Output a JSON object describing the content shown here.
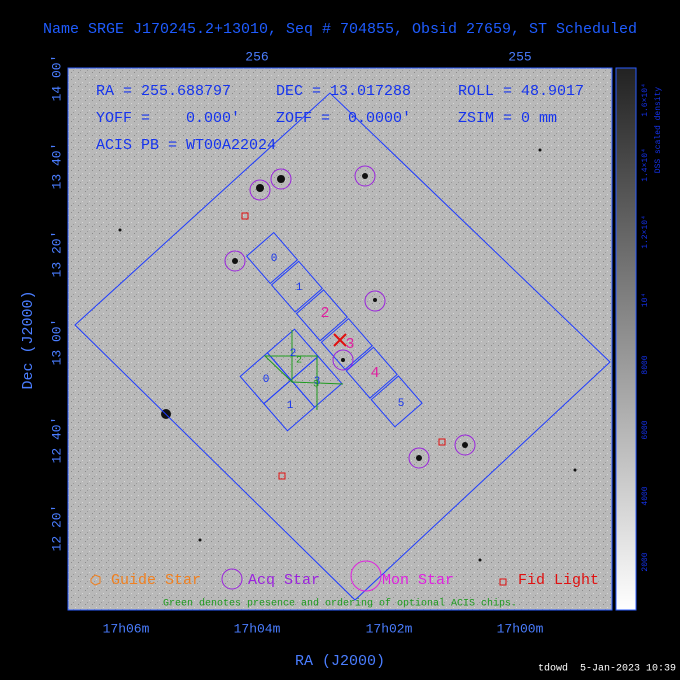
{
  "header": {
    "title": "Name SRGE J170245.2+13010, Seq # 704855, Obsid 27659, ST Scheduled"
  },
  "axes": {
    "top_ticks": [
      "256",
      "255"
    ],
    "left_ticks": [
      "14 00'",
      "13 40'",
      "13 20'",
      "13 00'",
      "12 40'",
      "12 20'"
    ],
    "bottom_ticks": [
      "17h06m",
      "17h04m",
      "17h02m",
      "17h00m"
    ],
    "x_title": "RA (J2000)",
    "y_title": "Dec (J2000)"
  },
  "info": [
    "RA = 255.688797",
    "DEC = 13.017288",
    "ROLL = 48.9017",
    "YOFF =    0.000'",
    "ZOFF =  0.0000'",
    "ZSIM = 0 mm",
    "ACIS PB = WT00A22024"
  ],
  "s_chips": [
    "0",
    "1",
    "2",
    "3",
    "4",
    "5"
  ],
  "i_chips": [
    "0",
    "1",
    "2",
    "3"
  ],
  "optional_chips": [
    "2",
    "3"
  ],
  "legend": [
    "Guide Star",
    "Acq Star",
    "Mon Star",
    "Fid Light"
  ],
  "note": "Green denotes presence and ordering of optional ACIS chips.",
  "colorbar": {
    "title": "DSS scaled density",
    "ticks": [
      "2000",
      "4000",
      "6000",
      "8000",
      "10⁴",
      "1.2×10⁴",
      "1.4×10⁴",
      "1.6×10⁴"
    ]
  },
  "footer": "tdowd  5-Jan-2023 10:39"
}
